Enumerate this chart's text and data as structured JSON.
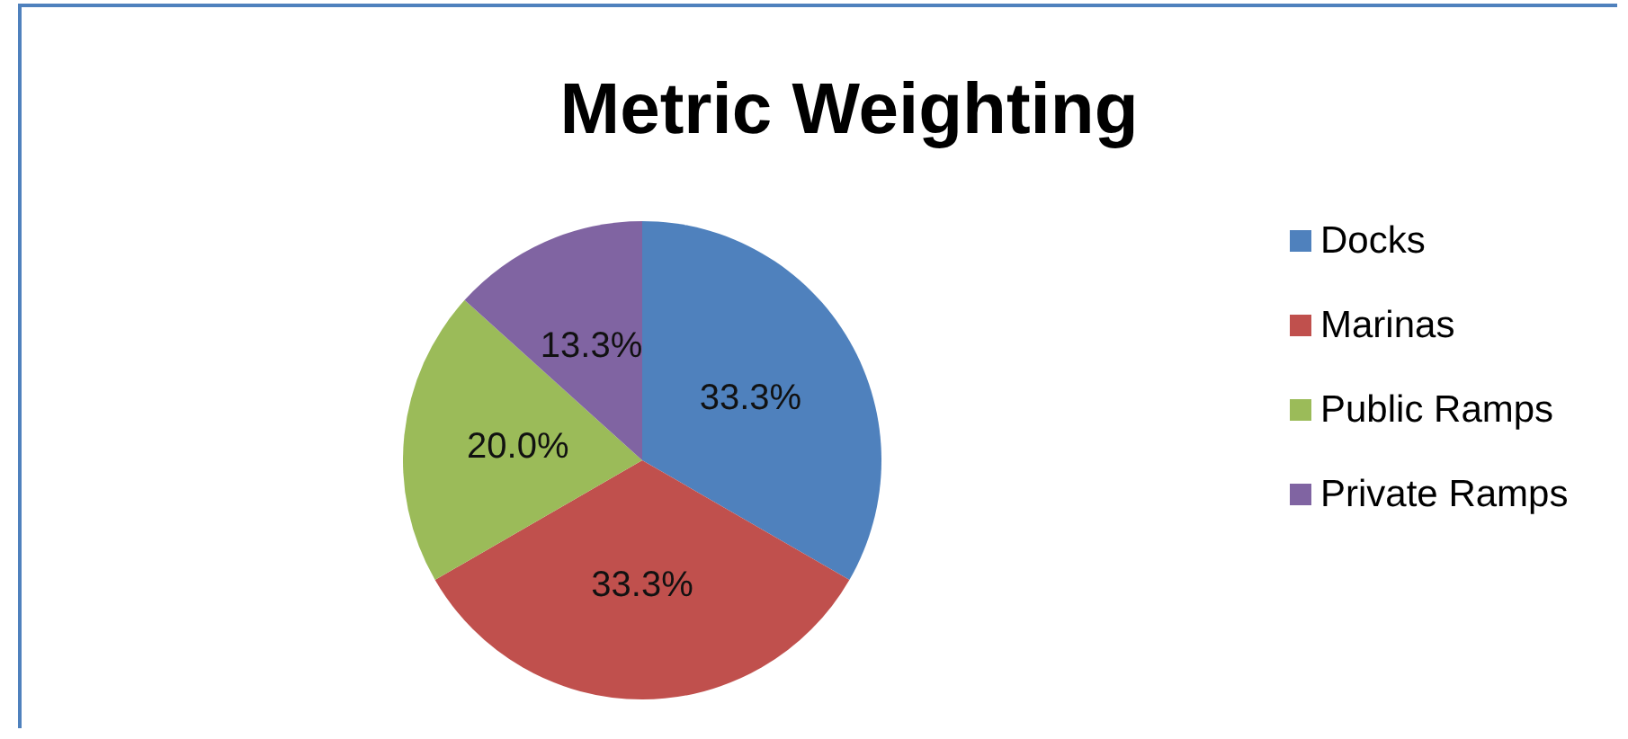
{
  "chart_data": {
    "type": "pie",
    "title": "Metric Weighting",
    "categories": [
      "Docks",
      "Marinas",
      "Public Ramps",
      "Private Ramps"
    ],
    "values": [
      33.3,
      33.3,
      20.0,
      13.3
    ],
    "colors": [
      "#4f81bd",
      "#c0504d",
      "#9bbb59",
      "#8064a2"
    ],
    "value_labels": [
      "33.3%",
      "33.3%",
      "20.0%",
      "13.3%"
    ],
    "legend": "right"
  }
}
